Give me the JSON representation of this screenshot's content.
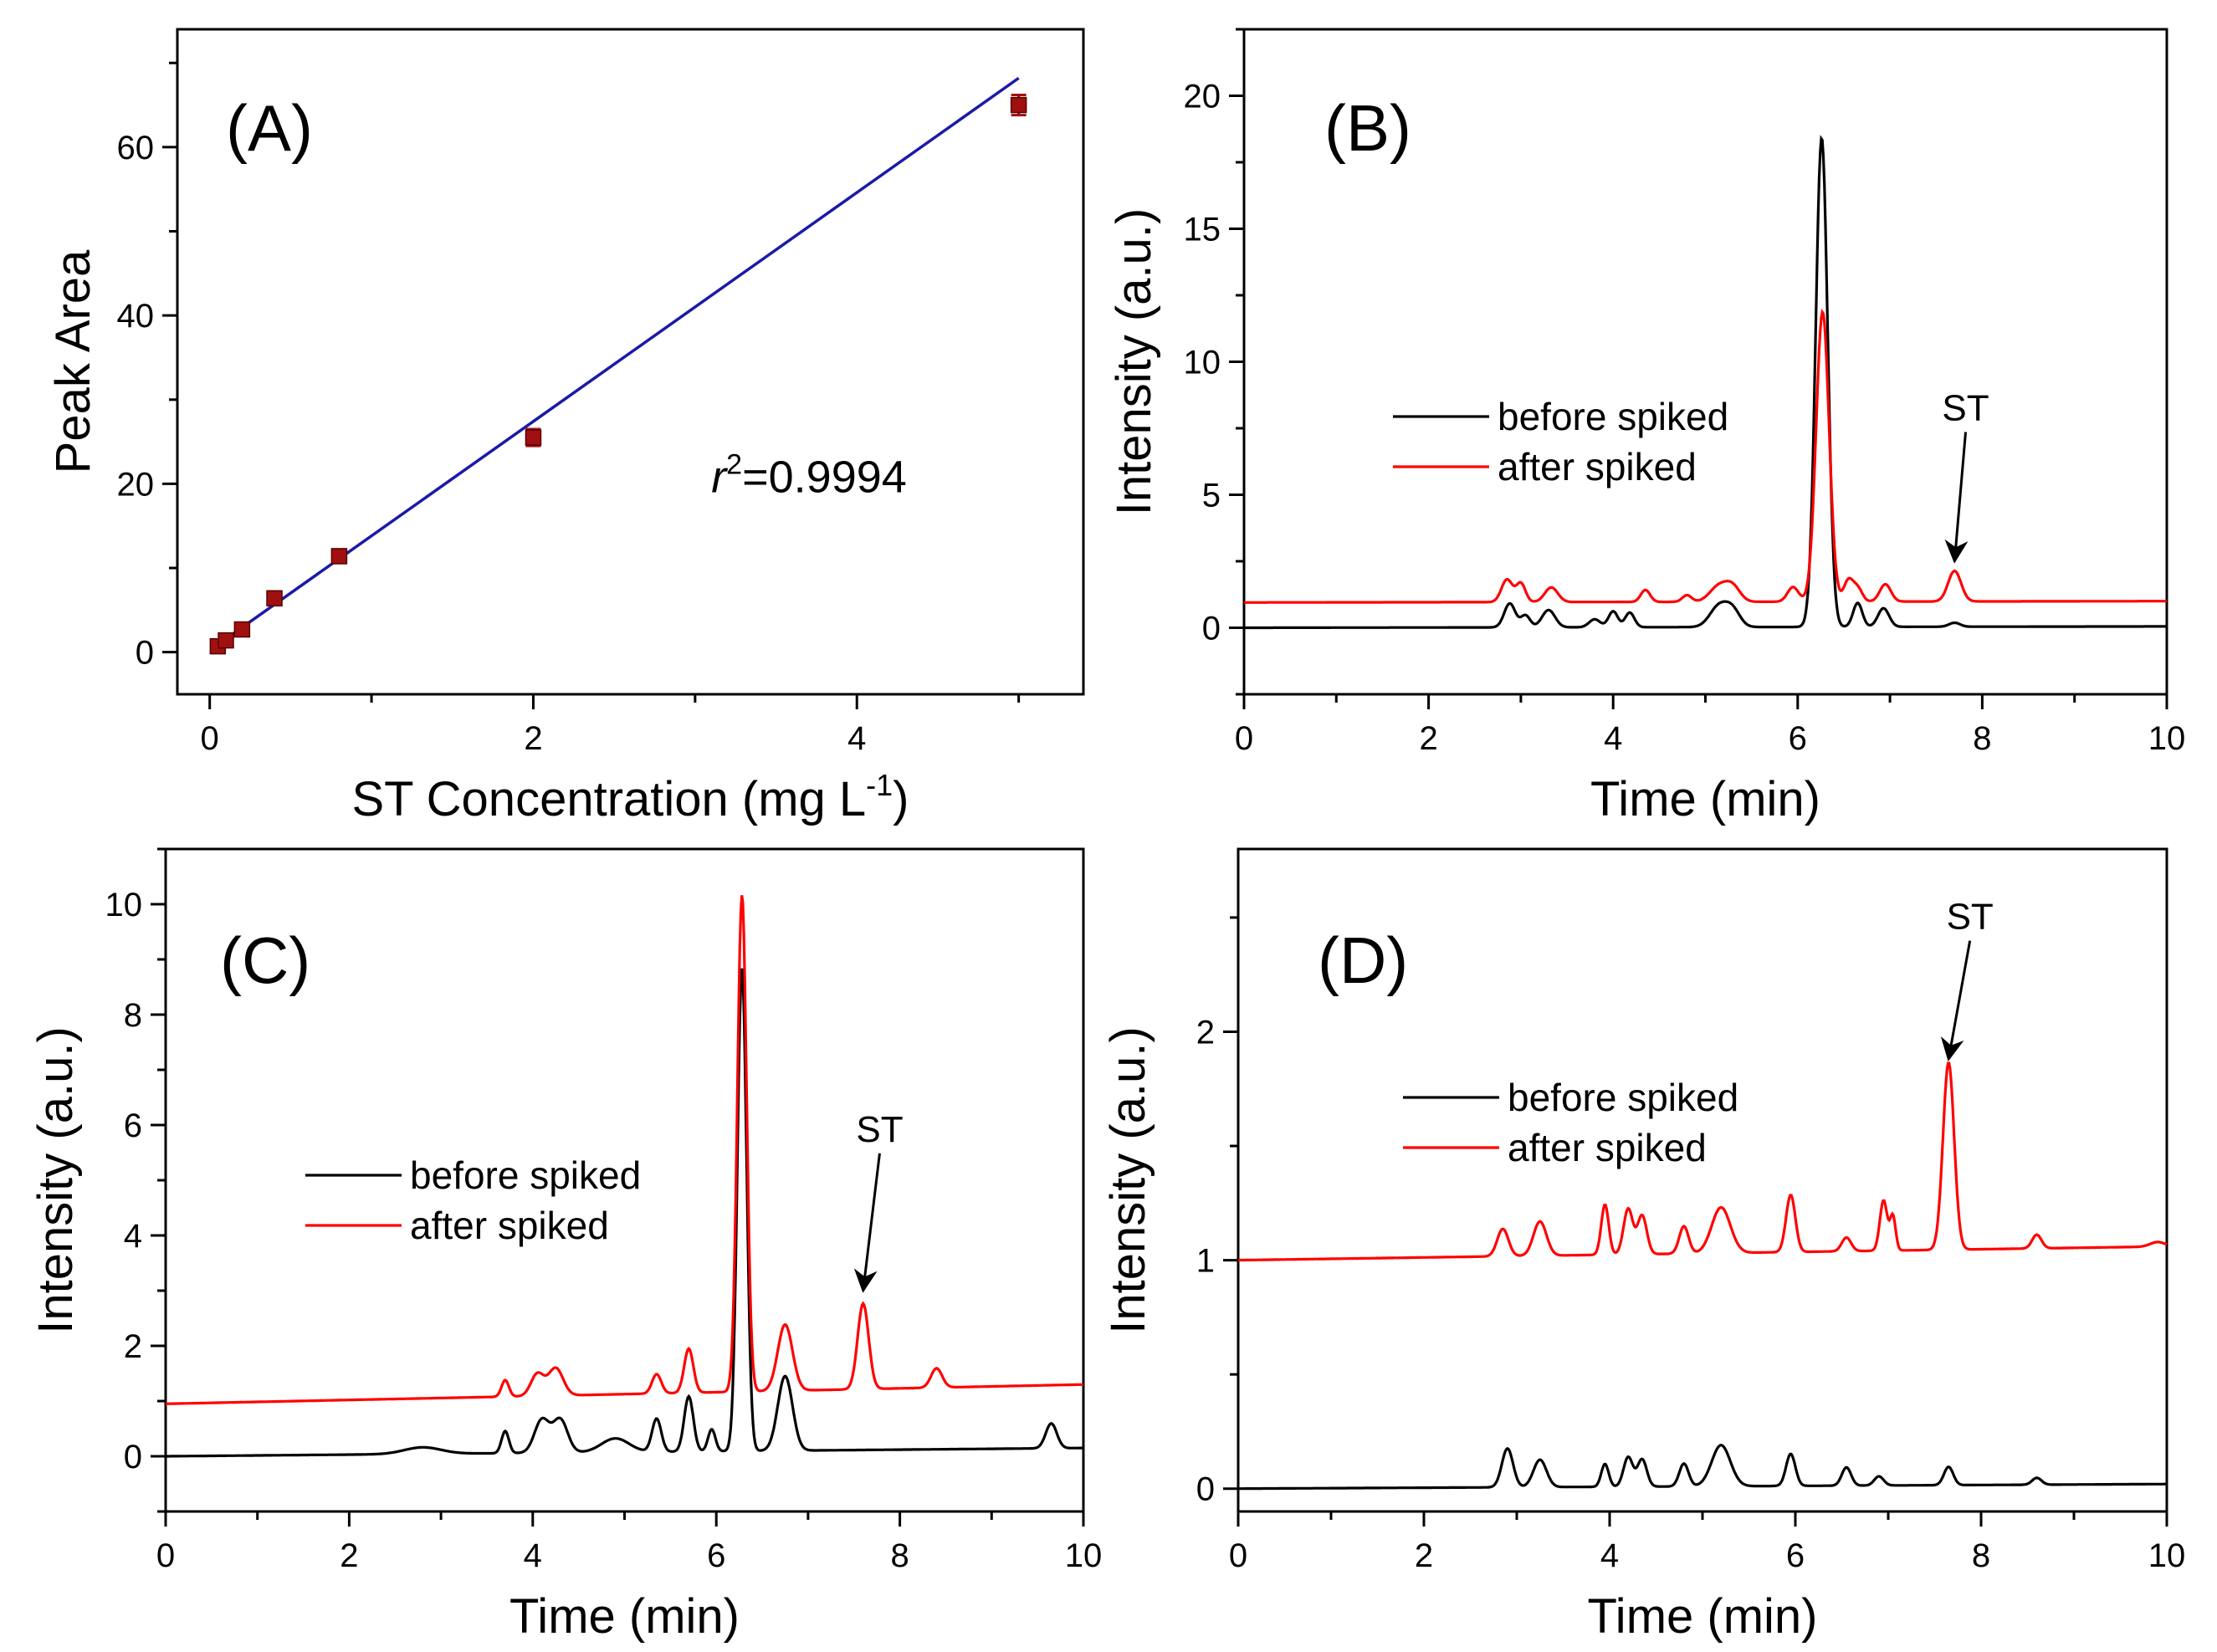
{
  "chart_data": [
    {
      "panel": "A",
      "type": "scatter",
      "panel_label": "(A)",
      "xlabel": "ST Concentration (mg L",
      "xlabel_superscript": "-1",
      "xlabel_suffix": ")",
      "ylabel": "Peak Area",
      "xlim": [
        -0.2,
        5.4
      ],
      "ylim": [
        -5,
        74
      ],
      "xticks": [
        0,
        2,
        4
      ],
      "yticks": [
        0,
        20,
        40,
        60
      ],
      "xtick_labels": [
        "0",
        "2",
        "4"
      ],
      "ytick_labels": [
        "0",
        "20",
        "40",
        "60"
      ],
      "points": [
        {
          "x": 0.05,
          "y": 0.7,
          "err": 0.5
        },
        {
          "x": 0.1,
          "y": 1.4,
          "err": 0.5
        },
        {
          "x": 0.2,
          "y": 2.7,
          "err": 0.6
        },
        {
          "x": 0.4,
          "y": 6.4,
          "err": 0.6
        },
        {
          "x": 0.8,
          "y": 11.4,
          "err": 0.8
        },
        {
          "x": 2.0,
          "y": 25.5,
          "err": 1.0
        },
        {
          "x": 5.0,
          "y": 65.0,
          "err": 1.2
        }
      ],
      "fit": {
        "x": [
          0.05,
          5.0
        ],
        "y": [
          0.9,
          68.2
        ]
      },
      "annotation_prefix": "r",
      "annotation_superscript": "2",
      "annotation_value": "=0.9994",
      "annotation_at": {
        "x": 3.1,
        "y": 19
      },
      "colors": {
        "points": "#a01010",
        "fit": "#1a1aa8"
      }
    },
    {
      "panel": "B",
      "type": "line",
      "panel_label": "(B)",
      "xlabel": "Time (min)",
      "ylabel": "Intensity (a.u.)",
      "xlim": [
        0,
        10
      ],
      "ylim": [
        -2.5,
        22.5
      ],
      "xticks": [
        0,
        2,
        4,
        6,
        8,
        10
      ],
      "yticks": [
        0,
        5,
        10,
        15,
        20
      ],
      "xtick_labels": [
        "0",
        "2",
        "4",
        "6",
        "8",
        "10"
      ],
      "ytick_labels": [
        "0",
        "5",
        "10",
        "15",
        "20"
      ],
      "series": [
        {
          "name": "before spiked",
          "color": "#000000",
          "baseline": 0.0,
          "drift": 0.05,
          "peaks": [
            [
              2.88,
              0.9,
              0.06
            ],
            [
              3.05,
              0.45,
              0.05
            ],
            [
              3.3,
              0.65,
              0.07
            ],
            [
              3.8,
              0.3,
              0.06
            ],
            [
              4.0,
              0.6,
              0.05
            ],
            [
              4.18,
              0.55,
              0.05
            ],
            [
              5.15,
              0.8,
              0.1
            ],
            [
              5.3,
              0.55,
              0.08
            ],
            [
              6.26,
              18.4,
              0.065
            ],
            [
              6.65,
              0.9,
              0.05
            ],
            [
              6.93,
              0.7,
              0.06
            ],
            [
              7.7,
              0.15,
              0.06
            ]
          ]
        },
        {
          "name": "after spiked",
          "color": "#ff0000",
          "baseline": 0.95,
          "drift": 0.05,
          "peaks": [
            [
              2.85,
              0.85,
              0.06
            ],
            [
              3.0,
              0.7,
              0.05
            ],
            [
              3.33,
              0.55,
              0.07
            ],
            [
              4.35,
              0.45,
              0.05
            ],
            [
              4.8,
              0.25,
              0.05
            ],
            [
              5.15,
              0.6,
              0.1
            ],
            [
              5.3,
              0.5,
              0.08
            ],
            [
              5.95,
              0.55,
              0.06
            ],
            [
              6.27,
              10.9,
              0.07
            ],
            [
              6.55,
              0.8,
              0.05
            ],
            [
              6.65,
              0.5,
              0.05
            ],
            [
              6.95,
              0.65,
              0.06
            ],
            [
              7.7,
              1.15,
              0.07
            ]
          ]
        }
      ],
      "annotation": {
        "text": "ST",
        "arrow_to": {
          "x": 7.7,
          "y": 2.5
        },
        "text_at": {
          "x": 7.82,
          "y": 7.8
        }
      },
      "legend_loc": "center-left"
    },
    {
      "panel": "C",
      "type": "line",
      "panel_label": "(C)",
      "xlabel": "Time (min)",
      "ylabel": "Intensity (a.u.)",
      "xlim": [
        0,
        10
      ],
      "ylim": [
        -1,
        11
      ],
      "xticks": [
        0,
        2,
        4,
        6,
        8,
        10
      ],
      "yticks": [
        0,
        2,
        4,
        6,
        8,
        10
      ],
      "xtick_labels": [
        "0",
        "2",
        "4",
        "6",
        "8",
        "10"
      ],
      "ytick_labels": [
        "0",
        "2",
        "4",
        "6",
        "8",
        "10"
      ],
      "series": [
        {
          "name": "before spiked",
          "color": "#000000",
          "baseline": 0.0,
          "drift": 0.15,
          "peaks": [
            [
              2.8,
              0.12,
              0.2
            ],
            [
              3.7,
              0.4,
              0.04
            ],
            [
              4.1,
              0.6,
              0.08
            ],
            [
              4.3,
              0.6,
              0.08
            ],
            [
              4.9,
              0.25,
              0.15
            ],
            [
              5.35,
              0.6,
              0.05
            ],
            [
              5.7,
              1.0,
              0.05
            ],
            [
              5.95,
              0.4,
              0.04
            ],
            [
              6.28,
              8.75,
              0.05
            ],
            [
              6.75,
              1.35,
              0.08
            ],
            [
              9.65,
              0.45,
              0.06
            ]
          ]
        },
        {
          "name": "after spiked",
          "color": "#ff0000",
          "baseline": 0.95,
          "drift": 0.35,
          "peaks": [
            [
              3.7,
              0.3,
              0.04
            ],
            [
              4.05,
              0.4,
              0.07
            ],
            [
              4.25,
              0.5,
              0.08
            ],
            [
              5.35,
              0.35,
              0.05
            ],
            [
              5.7,
              0.8,
              0.05
            ],
            [
              6.28,
              9.0,
              0.05
            ],
            [
              6.75,
              1.2,
              0.08
            ],
            [
              7.6,
              1.55,
              0.06
            ],
            [
              8.4,
              0.35,
              0.06
            ]
          ]
        }
      ],
      "annotation": {
        "text": "ST",
        "arrow_to": {
          "x": 7.6,
          "y": 3.0
        },
        "text_at": {
          "x": 7.78,
          "y": 5.7
        }
      },
      "legend_loc": "center-left"
    },
    {
      "panel": "D",
      "type": "line",
      "panel_label": "(D)",
      "xlabel": "Time (min)",
      "ylabel": "Intensity (a.u.)",
      "xlim": [
        0,
        10
      ],
      "ylim": [
        -0.1,
        2.8
      ],
      "xticks": [
        0,
        2,
        4,
        6,
        8,
        10
      ],
      "yticks": [
        0,
        1,
        2
      ],
      "xtick_labels": [
        "0",
        "2",
        "4",
        "6",
        "8",
        "10"
      ],
      "ytick_labels": [
        "0",
        "1",
        "2"
      ],
      "series": [
        {
          "name": "before spiked",
          "color": "#000000",
          "baseline": 0.0,
          "drift": 0.02,
          "peaks": [
            [
              2.9,
              0.17,
              0.06
            ],
            [
              3.25,
              0.12,
              0.07
            ],
            [
              3.95,
              0.1,
              0.04
            ],
            [
              4.2,
              0.13,
              0.05
            ],
            [
              4.35,
              0.12,
              0.05
            ],
            [
              4.8,
              0.1,
              0.05
            ],
            [
              5.2,
              0.18,
              0.1
            ],
            [
              5.95,
              0.14,
              0.05
            ],
            [
              6.55,
              0.08,
              0.05
            ],
            [
              6.9,
              0.04,
              0.05
            ],
            [
              7.65,
              0.08,
              0.05
            ],
            [
              8.6,
              0.03,
              0.05
            ]
          ]
        },
        {
          "name": "after spiked",
          "color": "#ff0000",
          "baseline": 1.0,
          "drift": 0.06,
          "peaks": [
            [
              2.85,
              0.12,
              0.06
            ],
            [
              3.25,
              0.15,
              0.07
            ],
            [
              3.95,
              0.22,
              0.04
            ],
            [
              4.2,
              0.2,
              0.05
            ],
            [
              4.35,
              0.17,
              0.05
            ],
            [
              4.8,
              0.12,
              0.05
            ],
            [
              5.2,
              0.2,
              0.1
            ],
            [
              5.95,
              0.25,
              0.05
            ],
            [
              6.55,
              0.06,
              0.05
            ],
            [
              6.95,
              0.22,
              0.04
            ],
            [
              7.05,
              0.15,
              0.03
            ],
            [
              7.65,
              0.82,
              0.06
            ],
            [
              8.6,
              0.06,
              0.05
            ],
            [
              9.9,
              0.02,
              0.08
            ]
          ]
        }
      ],
      "annotation": {
        "text": "ST",
        "arrow_to": {
          "x": 7.65,
          "y": 1.88
        },
        "text_at": {
          "x": 7.88,
          "y": 2.45
        }
      },
      "legend_loc": "upper-center"
    }
  ]
}
